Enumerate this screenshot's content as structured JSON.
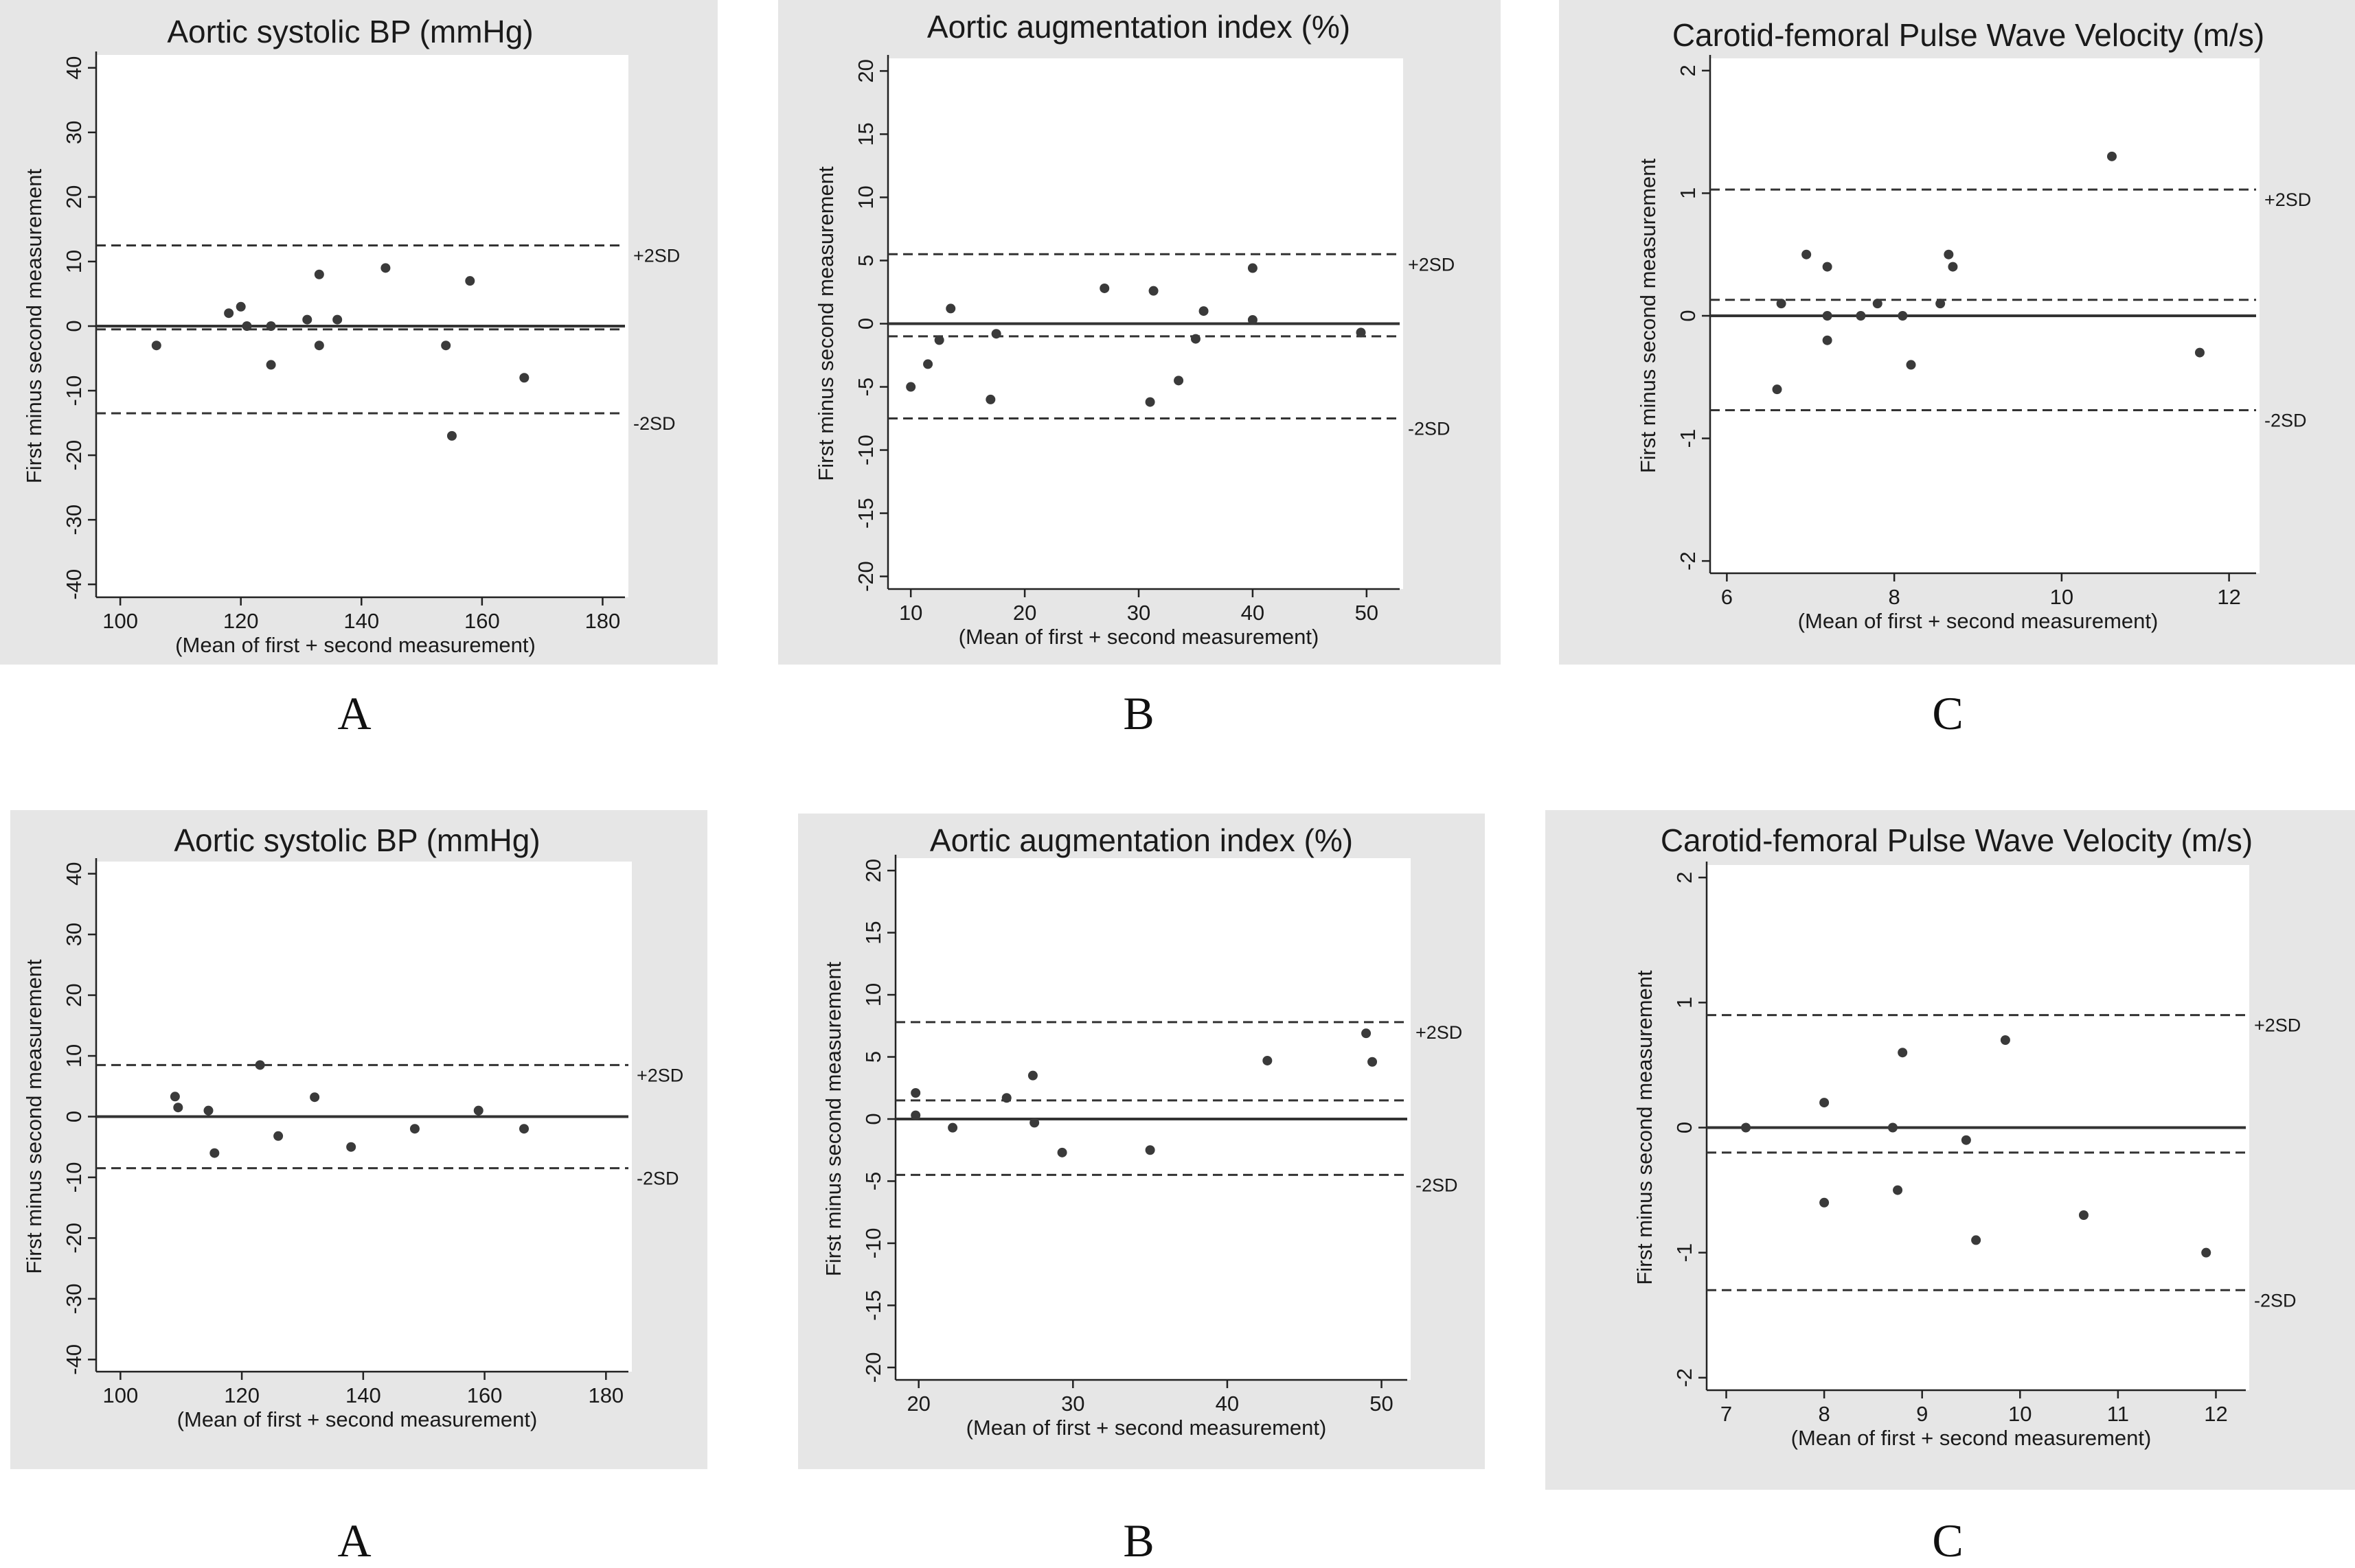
{
  "chart_data": [
    {
      "type": "scatter",
      "letter": "A",
      "title": "Aortic systolic BP (mmHg)",
      "xlabel": "(Mean of first + second measurement)",
      "ylabel": "First minus second measurement",
      "xlim": [
        96,
        182
      ],
      "ylim": [
        -42,
        42
      ],
      "xticks": [
        "100",
        "120",
        "140",
        "160",
        "180"
      ],
      "yticks": [
        "-40",
        "-30",
        "-20",
        "-10",
        "0",
        "10",
        "20",
        "30",
        "40"
      ],
      "lines": {
        "zero": 0,
        "mean": -0.5,
        "upper": 12.5,
        "lower": -13.5
      },
      "sd_labels": {
        "upper": "+2SD",
        "lower": "-2SD"
      },
      "points": [
        [
          106,
          -3
        ],
        [
          118,
          2
        ],
        [
          120,
          3
        ],
        [
          121,
          0
        ],
        [
          125,
          -6
        ],
        [
          125,
          0
        ],
        [
          131,
          1
        ],
        [
          133,
          -3
        ],
        [
          133,
          8
        ],
        [
          136,
          1
        ],
        [
          144,
          9
        ],
        [
          154,
          -3
        ],
        [
          155,
          -17
        ],
        [
          158,
          7
        ],
        [
          167,
          -8
        ]
      ]
    },
    {
      "type": "scatter",
      "letter": "B",
      "title": "Aortic augmentation index (%)",
      "xlabel": "(Mean of first + second measurement)",
      "ylabel": "First minus second measurement",
      "xlim": [
        8,
        52
      ],
      "ylim": [
        -21,
        21
      ],
      "xticks": [
        "10",
        "20",
        "30",
        "40",
        "50"
      ],
      "yticks": [
        "-20",
        "-15",
        "-10",
        "-5",
        "0",
        "5",
        "10",
        "15",
        "20"
      ],
      "lines": {
        "zero": 0,
        "mean": -1,
        "upper": 5.5,
        "lower": -7.5
      },
      "sd_labels": {
        "upper": "+2SD",
        "lower": "-2SD"
      },
      "points": [
        [
          10,
          -5
        ],
        [
          11.5,
          -3.2
        ],
        [
          12.5,
          -1.3
        ],
        [
          13.5,
          1.2
        ],
        [
          17,
          -6
        ],
        [
          17.5,
          -0.8
        ],
        [
          27,
          2.8
        ],
        [
          31,
          -6.2
        ],
        [
          31.3,
          2.6
        ],
        [
          33.5,
          -4.5
        ],
        [
          35,
          -1.2
        ],
        [
          35.7,
          1
        ],
        [
          40,
          4.4
        ],
        [
          40,
          0.3
        ],
        [
          49.5,
          -0.7
        ]
      ]
    },
    {
      "type": "scatter",
      "letter": "C",
      "title": "Carotid-femoral Pulse Wave Velocity (m/s)",
      "xlabel": "(Mean of first + second measurement)",
      "ylabel": "First minus second measurement",
      "xlim": [
        5.8,
        12.2
      ],
      "ylim": [
        -2.1,
        2.1
      ],
      "xticks": [
        "6",
        "8",
        "10",
        "12"
      ],
      "yticks": [
        "-2",
        "-1",
        "0",
        "1",
        "2"
      ],
      "lines": {
        "zero": 0,
        "mean": 0.13,
        "upper": 1.03,
        "lower": -0.77
      },
      "sd_labels": {
        "upper": "+2SD",
        "lower": "-2SD"
      },
      "points": [
        [
          6.6,
          -0.6
        ],
        [
          6.65,
          0.1
        ],
        [
          6.95,
          0.5
        ],
        [
          7.2,
          0.4
        ],
        [
          7.2,
          0
        ],
        [
          7.2,
          -0.2
        ],
        [
          7.6,
          0
        ],
        [
          7.8,
          0.1
        ],
        [
          8.1,
          0
        ],
        [
          8.2,
          -0.4
        ],
        [
          8.55,
          0.1
        ],
        [
          8.65,
          0.5
        ],
        [
          8.7,
          0.4
        ],
        [
          10.6,
          1.3
        ],
        [
          11.65,
          -0.3
        ]
      ]
    },
    {
      "type": "scatter",
      "letter": "A",
      "title": "Aortic systolic BP (mmHg)",
      "xlabel": "(Mean of first + second measurement)",
      "ylabel": "First minus second measurement",
      "xlim": [
        96,
        182
      ],
      "ylim": [
        -42,
        42
      ],
      "xticks": [
        "100",
        "120",
        "140",
        "160",
        "180"
      ],
      "yticks": [
        "-40",
        "-30",
        "-20",
        "-10",
        "0",
        "10",
        "20",
        "30",
        "40"
      ],
      "lines": {
        "zero": 0,
        "mean": 0,
        "upper": 8.5,
        "lower": -8.5
      },
      "sd_labels": {
        "upper": "+2SD",
        "lower": "-2SD"
      },
      "points": [
        [
          109,
          3.3
        ],
        [
          109.5,
          1.5
        ],
        [
          114.5,
          1
        ],
        [
          115.5,
          -6
        ],
        [
          123,
          8.5
        ],
        [
          126,
          -3.2
        ],
        [
          132,
          3.2
        ],
        [
          138,
          -5
        ],
        [
          148.5,
          -2
        ],
        [
          159,
          1
        ],
        [
          166.5,
          -2
        ]
      ]
    },
    {
      "type": "scatter",
      "letter": "B",
      "title": "Aortic augmentation index (%)",
      "xlabel": "(Mean of first + second measurement)",
      "ylabel": "First minus second measurement",
      "xlim": [
        18.5,
        51
      ],
      "ylim": [
        -21,
        21
      ],
      "xticks": [
        "20",
        "30",
        "40",
        "50"
      ],
      "yticks": [
        "-20",
        "-15",
        "-10",
        "-5",
        "0",
        "5",
        "10",
        "15",
        "20"
      ],
      "lines": {
        "zero": 0,
        "mean": 1.5,
        "upper": 7.8,
        "lower": -4.5
      },
      "sd_labels": {
        "upper": "+2SD",
        "lower": "-2SD"
      },
      "points": [
        [
          19.8,
          2.1
        ],
        [
          19.8,
          0.3
        ],
        [
          22.2,
          -0.7
        ],
        [
          25.7,
          1.7
        ],
        [
          27.4,
          3.5
        ],
        [
          27.5,
          -0.3
        ],
        [
          29.3,
          -2.7
        ],
        [
          35,
          -2.5
        ],
        [
          42.6,
          4.7
        ],
        [
          49,
          6.9
        ],
        [
          49.4,
          4.6
        ]
      ]
    },
    {
      "type": "scatter",
      "letter": "C",
      "title": "Carotid-femoral Pulse Wave Velocity (m/s)",
      "xlabel": "(Mean of first + second measurement)",
      "ylabel": "First minus second measurement",
      "xlim": [
        6.8,
        12.2
      ],
      "ylim": [
        -2.1,
        2.1
      ],
      "xticks": [
        "7",
        "8",
        "9",
        "10",
        "11",
        "12"
      ],
      "yticks": [
        "-2",
        "-1",
        "0",
        "1",
        "2"
      ],
      "lines": {
        "zero": 0,
        "mean": -0.2,
        "upper": 0.9,
        "lower": -1.3
      },
      "sd_labels": {
        "upper": "+2SD",
        "lower": "-2SD"
      },
      "points": [
        [
          7.2,
          0
        ],
        [
          8,
          0.2
        ],
        [
          8,
          -0.6
        ],
        [
          8.7,
          0
        ],
        [
          8.75,
          -0.5
        ],
        [
          8.8,
          0.6
        ],
        [
          9.45,
          -0.1
        ],
        [
          9.55,
          -0.9
        ],
        [
          9.85,
          0.7
        ],
        [
          10.65,
          -0.7
        ],
        [
          11.9,
          -1
        ]
      ]
    }
  ]
}
